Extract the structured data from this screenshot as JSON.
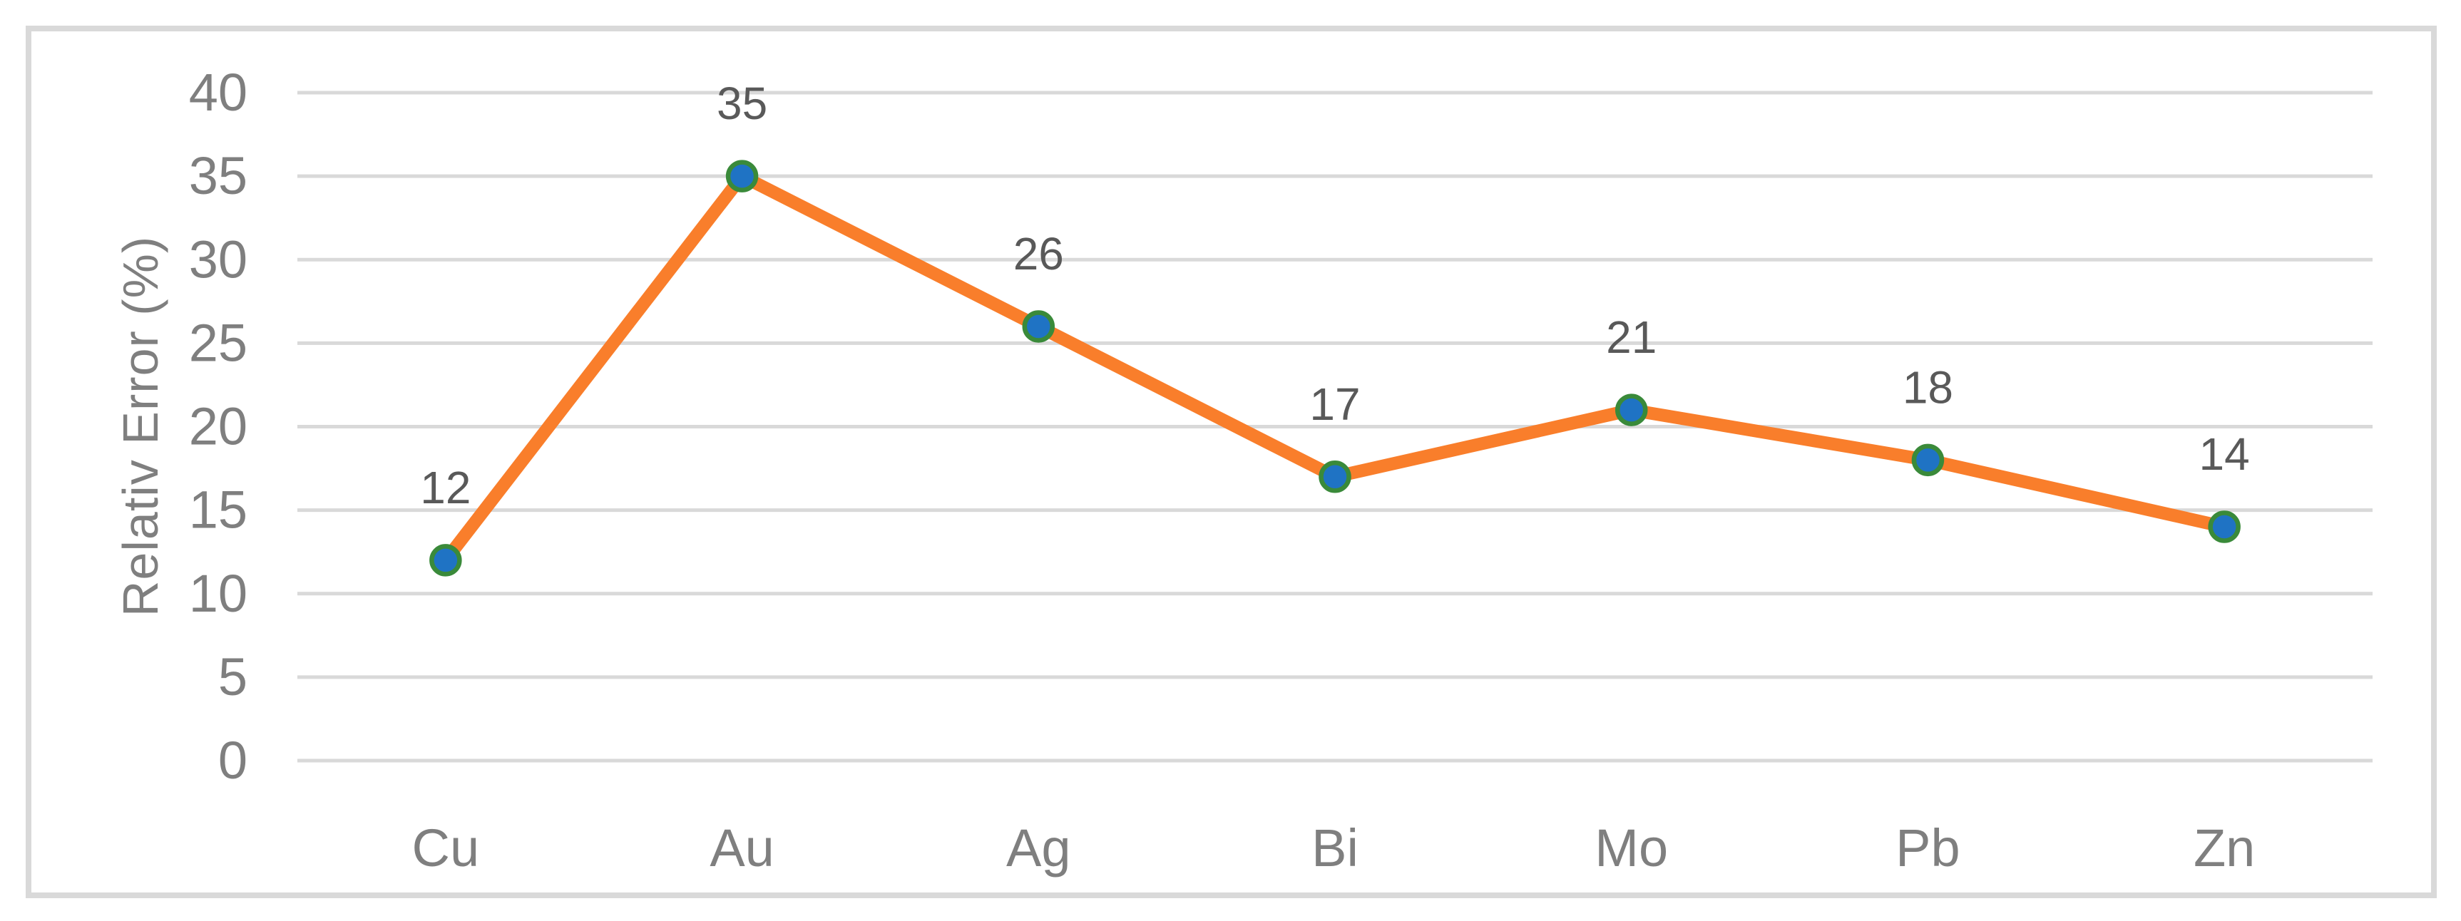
{
  "chart_data": {
    "type": "line",
    "title": "",
    "xlabel": "",
    "ylabel": "Relativ Error (%)",
    "categories": [
      "Cu",
      "Au",
      "Ag",
      "Bi",
      "Mo",
      "Pb",
      "Zn"
    ],
    "series": [
      {
        "name": "Relativ Error (%)",
        "values": [
          12,
          35,
          26,
          17,
          21,
          18,
          14
        ]
      }
    ],
    "data_labels": [
      "12",
      "35",
      "26",
      "17",
      "21",
      "18",
      "14"
    ],
    "yticks": [
      "0",
      "5",
      "10",
      "15",
      "20",
      "25",
      "30",
      "35",
      "40"
    ],
    "ylim": [
      0,
      40
    ],
    "grid": true,
    "legend": false,
    "colors": {
      "line": "#F97E2B",
      "marker_fill": "#1F73C4",
      "marker_border": "#3A8A3A",
      "gridline": "#D9D9D9",
      "frame_border": "#D9D9D9",
      "tick_label": "#7F7F7F",
      "category_label": "#7F7F7F",
      "axis_title": "#7F7F7F",
      "data_label": "#595959"
    }
  }
}
